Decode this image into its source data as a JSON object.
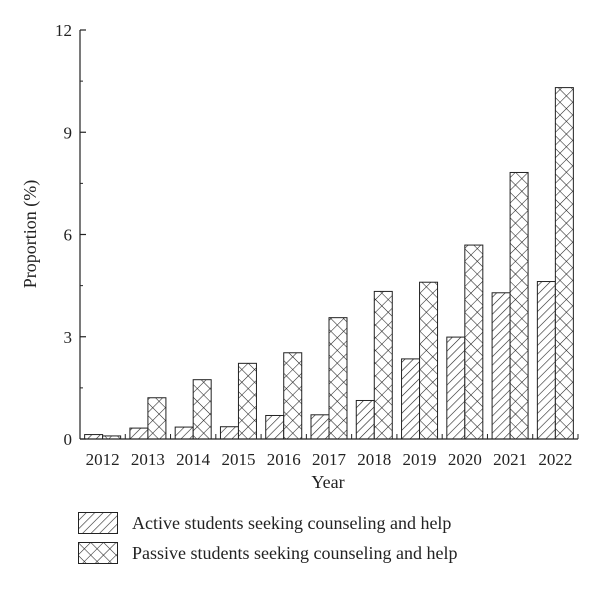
{
  "chart_data": {
    "type": "bar",
    "title": "",
    "xlabel": "Year",
    "ylabel": "Proportion (%)",
    "ylim": [
      0,
      12
    ],
    "yticks": [
      0,
      3,
      6,
      9,
      12
    ],
    "categories": [
      "2012",
      "2013",
      "2014",
      "2015",
      "2016",
      "2017",
      "2018",
      "2019",
      "2020",
      "2021",
      "2022"
    ],
    "series": [
      {
        "name": "Active students seeking counseling and help",
        "pattern": "diagonal-hatch",
        "values": [
          0.13,
          0.32,
          0.35,
          0.36,
          0.69,
          0.71,
          1.13,
          2.35,
          2.99,
          4.29,
          4.62
        ]
      },
      {
        "name": "Passive students seeking counseling and help",
        "pattern": "cross-hatch",
        "values": [
          0.09,
          1.21,
          1.74,
          2.22,
          2.53,
          3.56,
          4.33,
          4.6,
          5.69,
          7.82,
          10.31
        ]
      }
    ],
    "grid": false,
    "legend_position": "bottom"
  }
}
